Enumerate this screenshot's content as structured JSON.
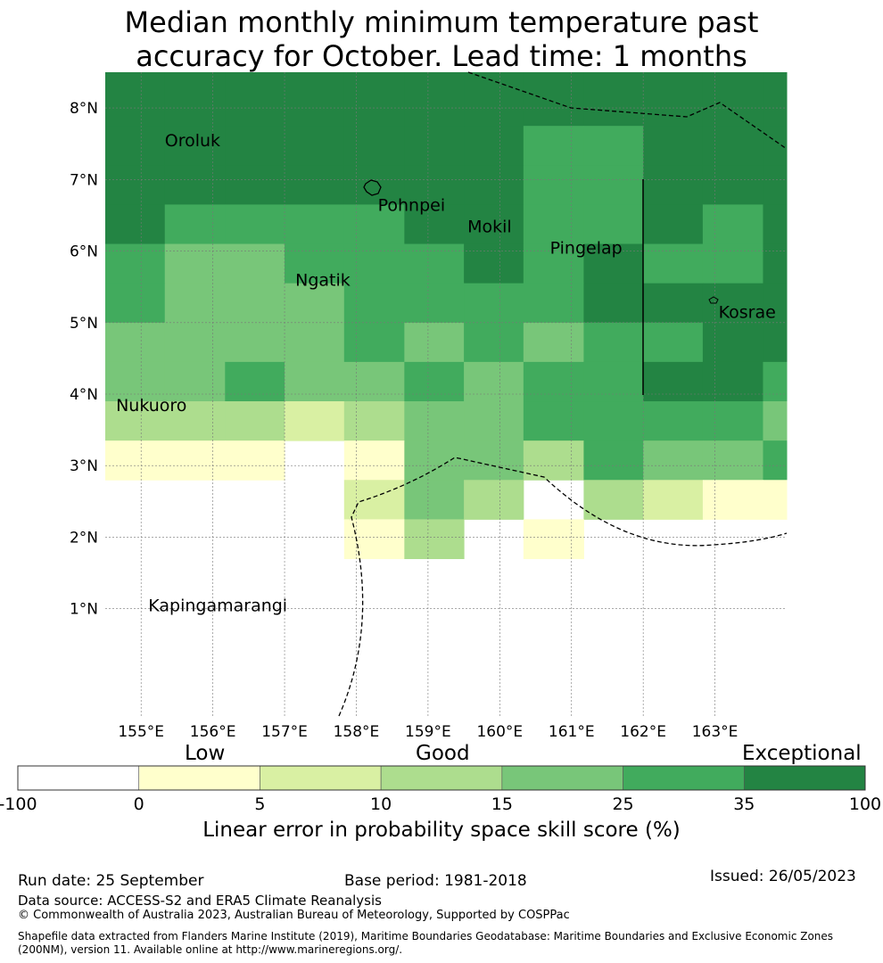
{
  "title": {
    "line1": "Median monthly minimum temperature past",
    "line2": "accuracy for October. Lead time: 1 months"
  },
  "map": {
    "lon_range": [
      154.5,
      164.0
    ],
    "lat_range": [
      -0.5,
      8.5
    ],
    "lon_ticks": [
      {
        "v": 155,
        "label": "155°E"
      },
      {
        "v": 156,
        "label": "156°E"
      },
      {
        "v": 157,
        "label": "157°E"
      },
      {
        "v": 158,
        "label": "158°E"
      },
      {
        "v": 159,
        "label": "159°E"
      },
      {
        "v": 160,
        "label": "160°E"
      },
      {
        "v": 161,
        "label": "161°E"
      },
      {
        "v": 162,
        "label": "162°E"
      },
      {
        "v": 163,
        "label": "163°E"
      }
    ],
    "lat_ticks": [
      {
        "v": 8,
        "label": "8°N"
      },
      {
        "v": 7,
        "label": "7°N"
      },
      {
        "v": 6,
        "label": "6°N"
      },
      {
        "v": 5,
        "label": "5°N"
      },
      {
        "v": 4,
        "label": "4°N"
      },
      {
        "v": 3,
        "label": "3°N"
      },
      {
        "v": 2,
        "label": "2°N"
      },
      {
        "v": 1,
        "label": "1°N"
      }
    ],
    "places": [
      {
        "name": "Oroluk",
        "lon": 155.33,
        "lat": 7.55
      },
      {
        "name": "Pohnpei",
        "lon": 158.3,
        "lat": 6.65
      },
      {
        "name": "Mokil",
        "lon": 159.55,
        "lat": 6.35
      },
      {
        "name": "Pingelap",
        "lon": 160.7,
        "lat": 6.05
      },
      {
        "name": "Ngatik",
        "lon": 157.15,
        "lat": 5.6
      },
      {
        "name": "Kosrae",
        "lon": 163.05,
        "lat": 5.15
      },
      {
        "name": "Nukuoro",
        "lon": 154.65,
        "lat": 3.85
      },
      {
        "name": "Kapingamarangi",
        "lon": 155.1,
        "lat": 1.05
      }
    ],
    "grid_lons": [
      154.5,
      155.33,
      156.17,
      157.0,
      157.83,
      158.67,
      159.5,
      160.33,
      161.17,
      162.0,
      162.83,
      163.67,
      164.0
    ],
    "grid_lats": [
      8.5,
      7.75,
      7.2,
      6.65,
      6.1,
      5.55,
      5.0,
      4.45,
      3.9,
      3.35,
      2.8,
      2.25,
      1.7,
      1.15
    ],
    "cells": [
      [
        6,
        6,
        6,
        6,
        6,
        6,
        6,
        6,
        6,
        6,
        6,
        6
      ],
      [
        6,
        6,
        6,
        6,
        6,
        6,
        6,
        5,
        5,
        6,
        6,
        6
      ],
      [
        6,
        6,
        6,
        6,
        6,
        6,
        6,
        5,
        5,
        6,
        6,
        6
      ],
      [
        6,
        5,
        5,
        5,
        5,
        6,
        6,
        5,
        5,
        6,
        5,
        6
      ],
      [
        5,
        4,
        4,
        5,
        5,
        5,
        6,
        5,
        6,
        5,
        5,
        6
      ],
      [
        5,
        4,
        4,
        4,
        5,
        5,
        5,
        5,
        6,
        6,
        6,
        6
      ],
      [
        4,
        4,
        4,
        4,
        5,
        4,
        5,
        4,
        5,
        5,
        6,
        6
      ],
      [
        4,
        4,
        5,
        4,
        4,
        5,
        4,
        5,
        5,
        6,
        6,
        5
      ],
      [
        3,
        3,
        3,
        2,
        3,
        4,
        4,
        5,
        5,
        5,
        5,
        4
      ],
      [
        1,
        1,
        1,
        0,
        1,
        4,
        4,
        3,
        5,
        4,
        4,
        5
      ],
      [
        0,
        0,
        0,
        0,
        2,
        4,
        3,
        0,
        3,
        2,
        1,
        1
      ],
      [
        0,
        0,
        0,
        0,
        1,
        3,
        0,
        1,
        0,
        0,
        0,
        0
      ],
      [
        0,
        0,
        0,
        0,
        0,
        0,
        0,
        0,
        0,
        0,
        0,
        0
      ]
    ],
    "colors": [
      "#ffffff",
      "#ffffcc",
      "#d9f0a3",
      "#addd8e",
      "#78c679",
      "#41ab5d",
      "#238443"
    ]
  },
  "colorbar": {
    "categories": [
      {
        "label": "Low"
      },
      {
        "label": "Good"
      },
      {
        "label": "Exceptional"
      }
    ],
    "ticks": [
      "-100",
      "0",
      "5",
      "10",
      "15",
      "25",
      "35",
      "100"
    ],
    "axis_title": "Linear error in probability space skill score (%)"
  },
  "footer": {
    "run_date": "Run date: 25 September",
    "base_period": "Base period: 1981-2018",
    "issued": "Issued: 26/05/2023",
    "data_source": "Data source: ACCESS-S2 and ERA5 Climate Reanalysis",
    "copyright": "© Commonwealth of Australia 2023, Australian Bureau of Meteorology, Supported by COSPPac",
    "shapefile": "Shapefile data extracted from Flanders Marine Institute (2019), Maritime Boundaries Geodatabase: Maritime Boundaries and Exclusive Economic Zones (200NM), version 11. Available online at http://www.marineregions.org/."
  }
}
